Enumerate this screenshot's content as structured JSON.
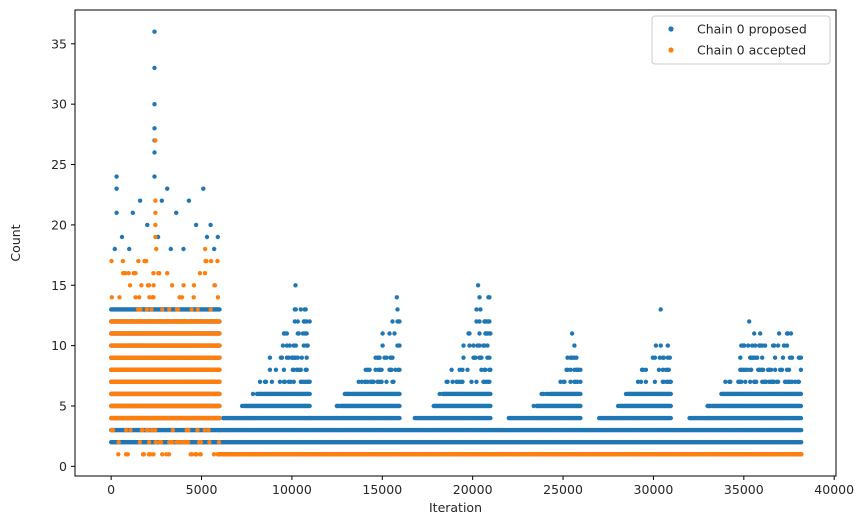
{
  "chart_data": {
    "type": "scatter",
    "title": "",
    "xlabel": "Iteration",
    "ylabel": "Count",
    "xlim": [
      -2000,
      40100
    ],
    "ylim": [
      -0.8,
      37.8
    ],
    "xticks": [
      0,
      5000,
      10000,
      15000,
      20000,
      25000,
      30000,
      35000,
      40000
    ],
    "xtick_labels": [
      "0",
      "5000",
      "10000",
      "15000",
      "20000",
      "25000",
      "30000",
      "35000",
      "40000"
    ],
    "yticks": [
      0,
      5,
      10,
      15,
      20,
      25,
      30,
      35
    ],
    "ytick_labels": [
      "0",
      "5",
      "10",
      "15",
      "20",
      "25",
      "30",
      "35"
    ],
    "grid": false,
    "legend_position": "top-right",
    "total_iterations": 38200,
    "series": [
      {
        "name": "Chain 0 proposed",
        "color": "#1f77b4",
        "dense_bands": [
          {
            "x_start": 0,
            "x_end": 6000,
            "y_values": [
              2,
              3,
              4,
              5,
              6,
              7,
              8,
              9,
              10,
              11,
              12,
              13
            ]
          },
          {
            "x_start": 6000,
            "x_end": 38200,
            "y_values": [
              1,
              2,
              3
            ]
          }
        ],
        "cycles": [
          {
            "x_start": 6200,
            "x_end": 11000,
            "peak_x": 10200,
            "peak_y": 15
          },
          {
            "x_start": 11000,
            "x_end": 16000,
            "peak_x": 15800,
            "peak_y": 14
          },
          {
            "x_start": 16800,
            "x_end": 21000,
            "peak_x": 20300,
            "peak_y": 15
          },
          {
            "x_start": 22000,
            "x_end": 26000,
            "peak_x": 25500,
            "peak_y": 11
          },
          {
            "x_start": 27000,
            "x_end": 31000,
            "peak_x": 30400,
            "peak_y": 13
          },
          {
            "x_start": 32000,
            "x_end": 38200,
            "peak_x": 35300,
            "peak_y": 12
          }
        ],
        "outliers": [
          {
            "x": 2400,
            "y": 36
          },
          {
            "x": 2400,
            "y": 33
          },
          {
            "x": 2400,
            "y": 30
          },
          {
            "x": 2400,
            "y": 28
          },
          {
            "x": 2400,
            "y": 27
          },
          {
            "x": 2400,
            "y": 26
          },
          {
            "x": 2400,
            "y": 24
          },
          {
            "x": 300,
            "y": 24
          },
          {
            "x": 300,
            "y": 23
          },
          {
            "x": 3100,
            "y": 23
          },
          {
            "x": 5100,
            "y": 23
          },
          {
            "x": 1600,
            "y": 22
          },
          {
            "x": 2800,
            "y": 22
          },
          {
            "x": 4300,
            "y": 22
          },
          {
            "x": 300,
            "y": 21
          },
          {
            "x": 1200,
            "y": 21
          },
          {
            "x": 3600,
            "y": 21
          },
          {
            "x": 2000,
            "y": 20
          },
          {
            "x": 4700,
            "y": 20
          },
          {
            "x": 5500,
            "y": 20
          },
          {
            "x": 600,
            "y": 19
          },
          {
            "x": 2600,
            "y": 19
          },
          {
            "x": 5300,
            "y": 19
          },
          {
            "x": 5900,
            "y": 19
          },
          {
            "x": 200,
            "y": 18
          },
          {
            "x": 1000,
            "y": 18
          },
          {
            "x": 3300,
            "y": 18
          },
          {
            "x": 4000,
            "y": 18
          },
          {
            "x": 5700,
            "y": 18
          }
        ]
      },
      {
        "name": "Chain 0 accepted",
        "color": "#ff7f0e",
        "dense_bands": [
          {
            "x_start": 0,
            "x_end": 6000,
            "y_values": [
              4,
              5,
              6,
              7,
              8,
              9,
              10,
              11,
              12
            ]
          },
          {
            "x_start": 5900,
            "x_end": 38200,
            "y_values": [
              1
            ]
          }
        ],
        "sparse_rows": [
          {
            "y": 1,
            "x_start": 300,
            "x_end": 6000
          },
          {
            "y": 2,
            "x_start": 0,
            "x_end": 6000
          },
          {
            "y": 3,
            "x_start": 0,
            "x_end": 6000
          },
          {
            "y": 13,
            "x_start": 0,
            "x_end": 6000
          },
          {
            "y": 14,
            "x_start": 0,
            "x_end": 6000
          },
          {
            "y": 15,
            "x_start": 0,
            "x_end": 6000
          },
          {
            "y": 16,
            "x_start": 0,
            "x_end": 6000
          },
          {
            "y": 17,
            "x_start": 0,
            "x_end": 6000
          }
        ],
        "outliers": [
          {
            "x": 2450,
            "y": 27
          },
          {
            "x": 2450,
            "y": 22
          },
          {
            "x": 2450,
            "y": 21
          },
          {
            "x": 2450,
            "y": 20
          },
          {
            "x": 2450,
            "y": 19
          },
          {
            "x": 5200,
            "y": 18
          },
          {
            "x": 1500,
            "y": 17
          },
          {
            "x": 2500,
            "y": 18
          },
          {
            "x": 3100,
            "y": 16
          }
        ]
      }
    ]
  }
}
